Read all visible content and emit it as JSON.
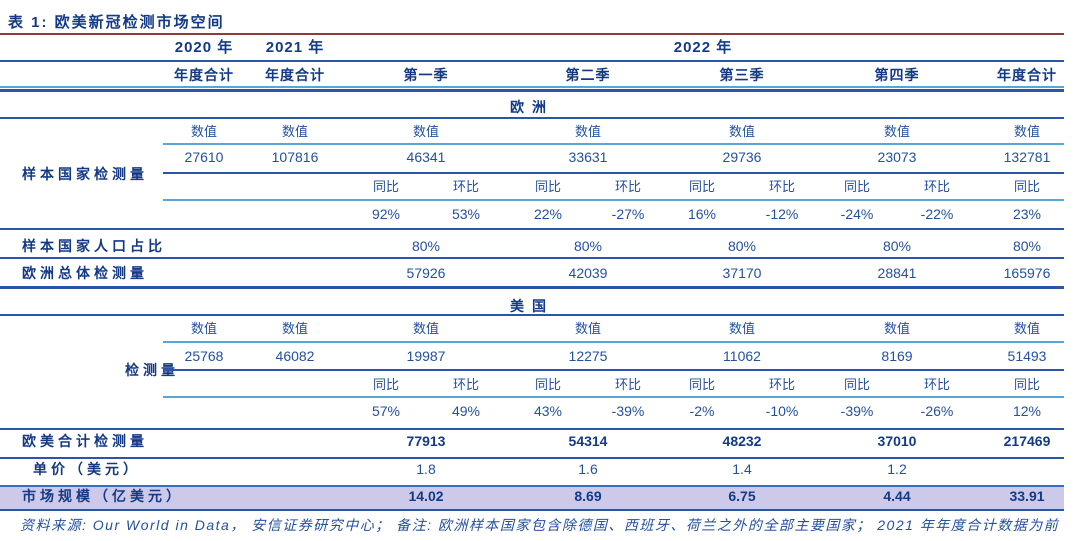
{
  "title": "表 1:  欧美新冠检测市场空间",
  "header": {
    "years": [
      "2020 年",
      "2021 年",
      "2022 年"
    ],
    "cols": [
      "年度合计",
      "年度合计",
      "第一季",
      "第二季",
      "第三季",
      "第四季",
      "年度合计"
    ]
  },
  "sub_labels": {
    "value": "数值",
    "yoy": "同比",
    "qoq": "环比"
  },
  "sections": [
    {
      "name": "欧洲",
      "group": {
        "label": "样本国家检测量",
        "values": [
          "27610",
          "107816",
          "46341",
          "33631",
          "29736",
          "23073",
          "132781"
        ],
        "pct": [
          "92%",
          "53%",
          "22%",
          "-27%",
          "16%",
          "-12%",
          "-24%",
          "-22%",
          "23%"
        ]
      },
      "rows": [
        {
          "label": "样本国家人口占比",
          "cells": [
            "80%",
            "80%",
            "80%",
            "80%",
            "80%"
          ]
        },
        {
          "label": "欧洲总体检测量",
          "cells": [
            "57926",
            "42039",
            "37170",
            "28841",
            "165976"
          ]
        }
      ]
    },
    {
      "name": "美国",
      "group": {
        "label": "检测量",
        "values": [
          "25768",
          "46082",
          "19987",
          "12275",
          "11062",
          "8169",
          "51493"
        ],
        "pct": [
          "57%",
          "49%",
          "43%",
          "-39%",
          "-2%",
          "-10%",
          "-39%",
          "-26%",
          "12%"
        ]
      },
      "rows": []
    }
  ],
  "summary_rows": [
    {
      "label": "欧美合计检测量",
      "cells": [
        "77913",
        "54314",
        "48232",
        "37010",
        "217469"
      ],
      "bold": true,
      "highlight": false
    },
    {
      "label": "单价（美元）",
      "cells": [
        "1.8",
        "1.6",
        "1.4",
        "1.2",
        ""
      ],
      "bold": false,
      "highlight": false
    },
    {
      "label": "市场规模（亿美元）",
      "cells": [
        "14.02",
        "8.69",
        "6.75",
        "4.44",
        "33.91"
      ],
      "bold": true,
      "highlight": true
    }
  ],
  "footnote": "资料来源: Our World in Data， 安信证券研究中心； 备注: 欧洲样本国家包含除德国、西班牙、荷兰之外的全部主要国家； 2021 年年度合计数据为前",
  "colors": {
    "dark": "#143a86",
    "val": "#2450a0",
    "navy": "#2b55a6",
    "teal": "#57a6d5",
    "red": "#8e3a38",
    "blue": "#3b6cc4",
    "hl": "#cdc9e8"
  }
}
